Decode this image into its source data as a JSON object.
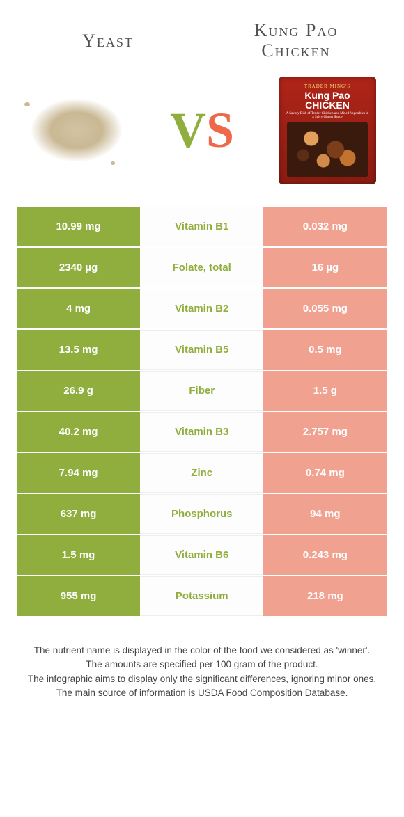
{
  "colors": {
    "left": "#90ae3d",
    "right": "#ed694a",
    "right_cell_bg": "#f1a18f",
    "mid_text_left_winner": "#90ae3d"
  },
  "header": {
    "left_title": "Yeast",
    "right_title_line1": "Kung Pao",
    "right_title_line2": "Chicken",
    "vs_v": "V",
    "vs_s": "S",
    "pack_brand": "TRADER MING'S",
    "pack_name": "Kung Pao CHICKEN",
    "pack_sub": "A Savory Dish of Tender Chicken and Mixed Vegetables in a Spicy Ginger Sauce"
  },
  "rows": [
    {
      "nutrient": "Vitamin B1",
      "left": "10.99 mg",
      "right": "0.032 mg"
    },
    {
      "nutrient": "Folate, total",
      "left": "2340 µg",
      "right": "16 µg"
    },
    {
      "nutrient": "Vitamin B2",
      "left": "4 mg",
      "right": "0.055 mg"
    },
    {
      "nutrient": "Vitamin B5",
      "left": "13.5 mg",
      "right": "0.5 mg"
    },
    {
      "nutrient": "Fiber",
      "left": "26.9 g",
      "right": "1.5 g"
    },
    {
      "nutrient": "Vitamin B3",
      "left": "40.2 mg",
      "right": "2.757 mg"
    },
    {
      "nutrient": "Zinc",
      "left": "7.94 mg",
      "right": "0.74 mg"
    },
    {
      "nutrient": "Phosphorus",
      "left": "637 mg",
      "right": "94 mg"
    },
    {
      "nutrient": "Vitamin B6",
      "left": "1.5 mg",
      "right": "0.243 mg"
    },
    {
      "nutrient": "Potassium",
      "left": "955 mg",
      "right": "218 mg"
    }
  ],
  "footer": {
    "l1": "The nutrient name is displayed in the color of the food we considered as 'winner'.",
    "l2": "The amounts are specified per 100 gram of the product.",
    "l3": "The infographic aims to display only the significant differences, ignoring minor ones.",
    "l4": "The main source of information is USDA Food Composition Database."
  }
}
